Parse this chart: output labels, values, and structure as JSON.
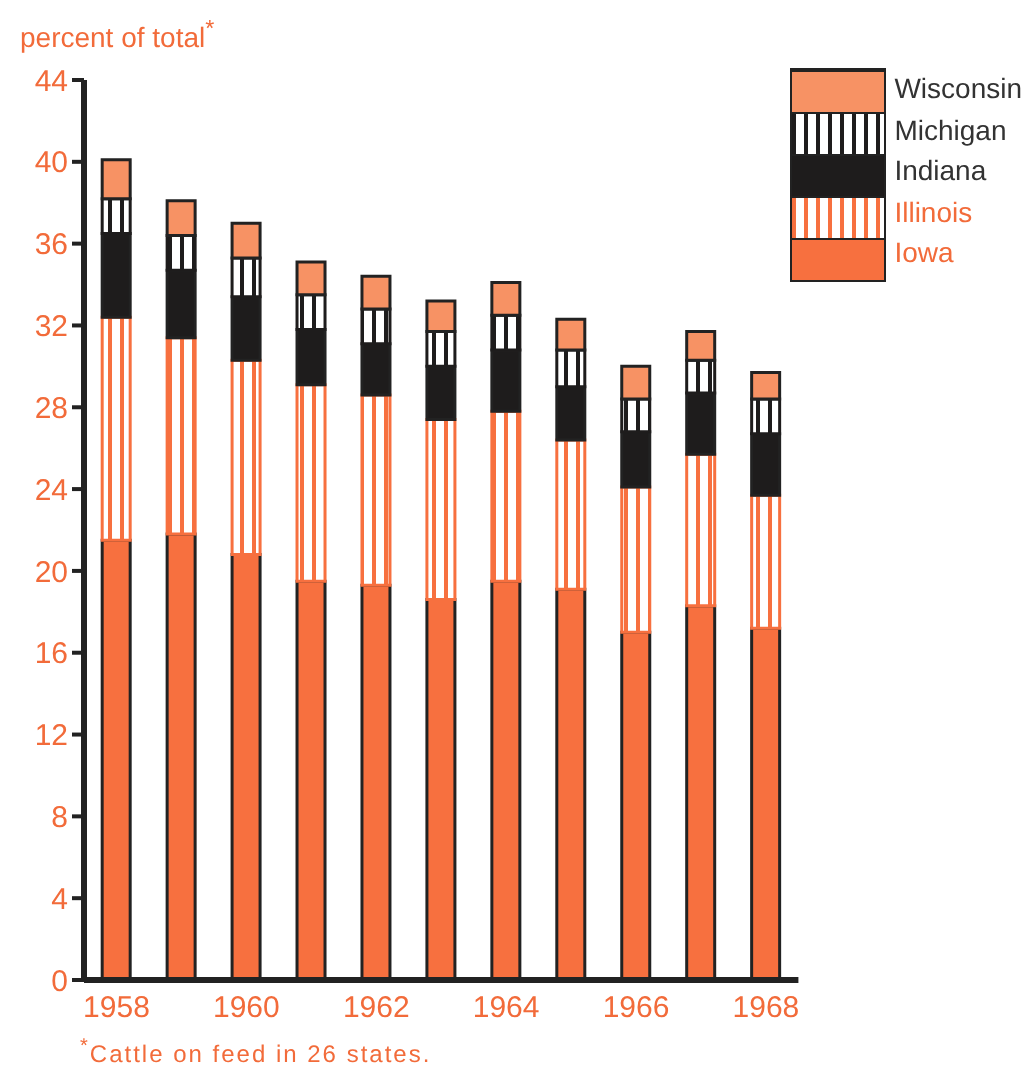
{
  "chart_data": {
    "type": "bar",
    "stacked": true,
    "ylabel": "percent of total$^{*}$",
    "annotations": [
      "$^{*}$Cattle on feed in 26 states."
    ],
    "categories": [
      "1958",
      null,
      "1960",
      null,
      "1962",
      null,
      "1964",
      null,
      "1966",
      null,
      "1968"
    ],
    "series": [
      {
        "name": "Iowa",
        "color": "#f7703f",
        "values": [
          21.5,
          21.8,
          20.8,
          19.5,
          19.3,
          18.6,
          19.5,
          19.1,
          17.0,
          18.3,
          17.2
        ]
      },
      {
        "name": "Illinois",
        "color": "#f7703f",
        "values": [
          10.9,
          9.6,
          9.5,
          9.6,
          9.3,
          8.8,
          8.3,
          7.3,
          7.1,
          7.4,
          6.5
        ]
      },
      {
        "name": "Indiana",
        "color": "#1e1c1c",
        "values": [
          4.1,
          3.3,
          3.1,
          2.7,
          2.5,
          2.6,
          3.0,
          2.6,
          2.7,
          3.0,
          3.0
        ]
      },
      {
        "name": "Michigan",
        "color": "#1e1c1c",
        "values": [
          1.7,
          1.7,
          1.9,
          1.7,
          1.7,
          1.7,
          1.7,
          1.8,
          1.6,
          1.6,
          1.7
        ]
      },
      {
        "name": "Wisconsin",
        "color": "#f79264",
        "values": [
          1.9,
          1.7,
          1.7,
          1.6,
          1.6,
          1.5,
          1.6,
          1.5,
          1.6,
          1.4,
          1.3
        ]
      }
    ],
    "ylim": [
      0,
      44
    ],
    "yticks": [
      0,
      4,
      8,
      12,
      16,
      20,
      24,
      28,
      32,
      36,
      40,
      44
    ],
    "grid": false,
    "legend": "top right"
  }
}
